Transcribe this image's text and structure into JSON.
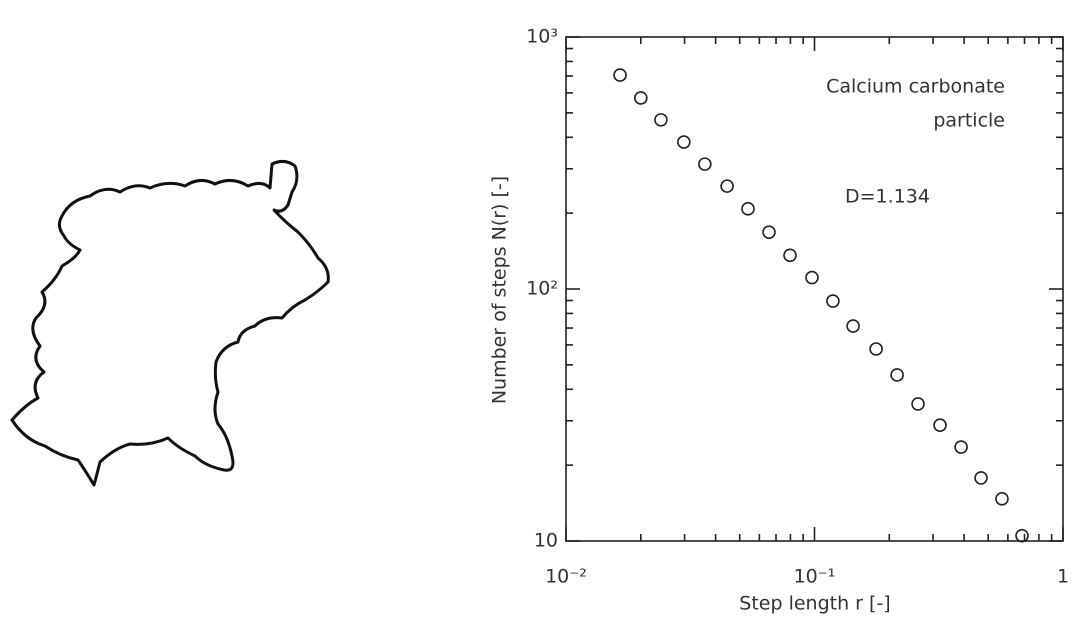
{
  "chart_data": {
    "type": "scatter",
    "x_label": "Step length  r [-]",
    "y_label": "Number of steps  N(r) [-]",
    "annotations": [
      "Calcium carbonate",
      "particle",
      "D=1.134"
    ],
    "xscale": "log",
    "yscale": "log",
    "xlim": [
      0.01,
      1
    ],
    "ylim": [
      10,
      1000
    ],
    "xticks": [
      {
        "value": 0.01,
        "label": "10⁻²"
      },
      {
        "value": 0.1,
        "label": "10⁻¹"
      },
      1
    ],
    "yticks": [
      10,
      {
        "value": 100,
        "label": "10²"
      },
      {
        "value": 1000,
        "label": "10³"
      }
    ],
    "minor_ticks": true,
    "color": "#222222",
    "x": [
      0.0165,
      0.02,
      0.0241,
      0.0298,
      0.0362,
      0.0445,
      0.054,
      0.0656,
      0.0797,
      0.0977,
      0.1186,
      0.143,
      0.177,
      0.215,
      0.261,
      0.32,
      0.389,
      0.468,
      0.568,
      0.684
    ],
    "values": [
      706,
      573,
      469,
      383,
      313,
      256,
      208,
      168,
      136,
      111,
      89.6,
      71.3,
      57.8,
      45.6,
      35.0,
      28.8,
      23.6,
      17.8,
      14.7,
      10.5
    ]
  }
}
